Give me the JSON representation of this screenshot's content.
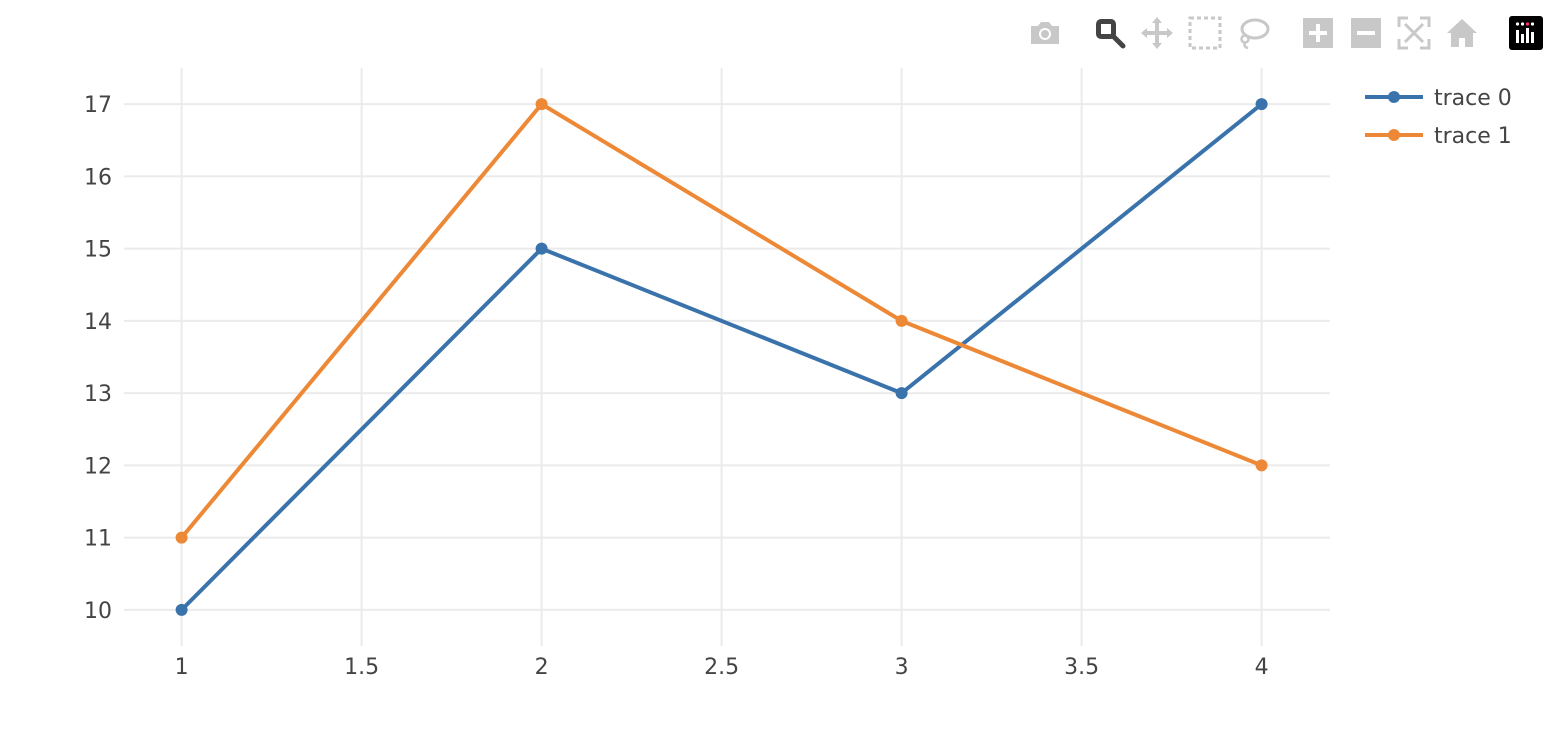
{
  "chart_data": {
    "type": "line",
    "x": [
      1,
      2,
      3,
      4
    ],
    "series": [
      {
        "name": "trace 0",
        "values": [
          10,
          15,
          13,
          17
        ],
        "color": "#3a73ab"
      },
      {
        "name": "trace 1",
        "values": [
          11,
          17,
          14,
          12
        ],
        "color": "#ed8936"
      }
    ],
    "xlim": [
      0.84,
      4.19
    ],
    "ylim": [
      9.5,
      17.5
    ],
    "xticks": [
      1,
      1.5,
      2,
      2.5,
      3,
      3.5,
      4
    ],
    "xtick_labels": [
      "1",
      "1.5",
      "2",
      "2.5",
      "3",
      "3.5",
      "4"
    ],
    "yticks": [
      10,
      11,
      12,
      13,
      14,
      15,
      16,
      17
    ],
    "ytick_labels": [
      "10",
      "11",
      "12",
      "13",
      "14",
      "15",
      "16",
      "17"
    ],
    "grid": true,
    "legend_position": "top-right",
    "title": "",
    "xlabel": "",
    "ylabel": ""
  },
  "modebar": {
    "buttons": [
      {
        "name": "camera-icon",
        "active": false
      },
      {
        "name": "zoom-icon",
        "active": true
      },
      {
        "name": "pan-icon",
        "active": false
      },
      {
        "name": "box-select-icon",
        "active": false
      },
      {
        "name": "lasso-select-icon",
        "active": false
      },
      {
        "name": "zoom-in-icon",
        "active": false
      },
      {
        "name": "zoom-out-icon",
        "active": false
      },
      {
        "name": "autoscale-icon",
        "active": false
      },
      {
        "name": "reset-axes-icon",
        "active": false
      },
      {
        "name": "plotly-logo-icon",
        "active": false
      }
    ],
    "colors": {
      "inactive": "#c8c8c8",
      "active": "#444444",
      "logo_bg": "#000000"
    }
  }
}
